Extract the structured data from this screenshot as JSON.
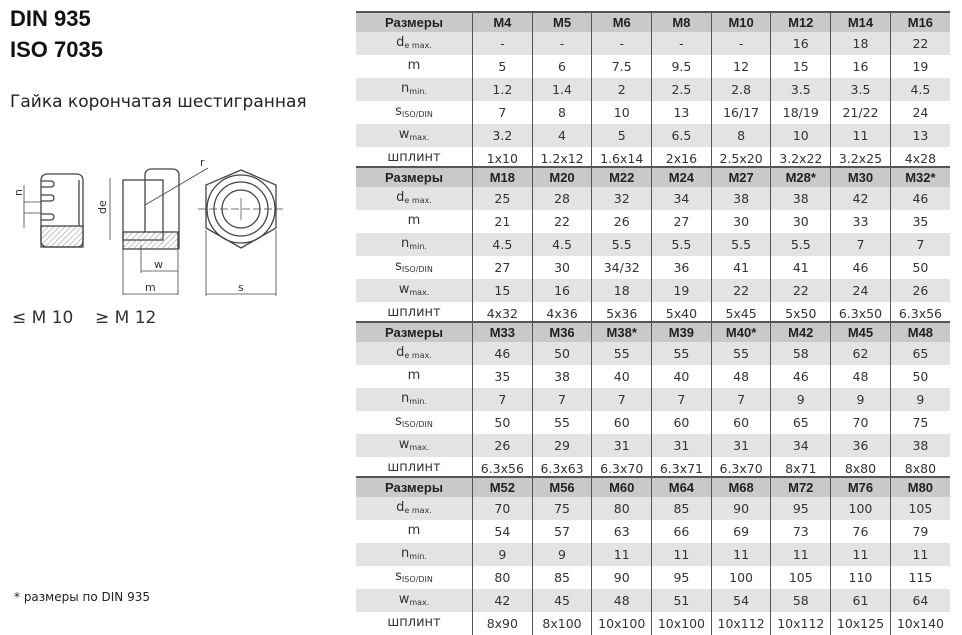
{
  "header": {
    "title1": "DIN 935",
    "title2": "ISO 7035",
    "subtitle": "Гайка корончатая шестигранная"
  },
  "drawing": {
    "labels": {
      "n": "n",
      "de": "de",
      "r": "r",
      "w": "w",
      "m": "m",
      "s": "s"
    },
    "note_left": "≤ M 10",
    "note_right": "≥ M 12"
  },
  "footnote": "* размеры по DIN 935",
  "row_labels": [
    {
      "main": "d",
      "sub": "e max."
    },
    {
      "main": "m",
      "sub": ""
    },
    {
      "main": "n",
      "sub": "min."
    },
    {
      "main": "s",
      "sub": "ISO/DIN"
    },
    {
      "main": "w",
      "sub": "max."
    },
    {
      "main": "шплинт",
      "sub": ""
    }
  ],
  "tables": [
    {
      "header": "Размеры",
      "sizes": [
        "M4",
        "M5",
        "M6",
        "M8",
        "M10",
        "M12",
        "M14",
        "M16"
      ],
      "rows": [
        [
          "-",
          "-",
          "-",
          "-",
          "-",
          "16",
          "18",
          "22"
        ],
        [
          "5",
          "6",
          "7.5",
          "9.5",
          "12",
          "15",
          "16",
          "19"
        ],
        [
          "1.2",
          "1.4",
          "2",
          "2.5",
          "2.8",
          "3.5",
          "3.5",
          "4.5"
        ],
        [
          "7",
          "8",
          "10",
          "13",
          "16/17",
          "18/19",
          "21/22",
          "24"
        ],
        [
          "3.2",
          "4",
          "5",
          "6.5",
          "8",
          "10",
          "11",
          "13"
        ],
        [
          "1x10",
          "1.2x12",
          "1.6x14",
          "2x16",
          "2.5x20",
          "3.2x22",
          "3.2x25",
          "4x28"
        ]
      ]
    },
    {
      "header": "Размеры",
      "sizes": [
        "M18",
        "M20",
        "M22",
        "M24",
        "M27",
        "M28*",
        "M30",
        "M32*"
      ],
      "rows": [
        [
          "25",
          "28",
          "32",
          "34",
          "38",
          "38",
          "42",
          "46"
        ],
        [
          "21",
          "22",
          "26",
          "27",
          "30",
          "30",
          "33",
          "35"
        ],
        [
          "4.5",
          "4.5",
          "5.5",
          "5.5",
          "5.5",
          "5.5",
          "7",
          "7"
        ],
        [
          "27",
          "30",
          "34/32",
          "36",
          "41",
          "41",
          "46",
          "50"
        ],
        [
          "15",
          "16",
          "18",
          "19",
          "22",
          "22",
          "24",
          "26"
        ],
        [
          "4x32",
          "4x36",
          "5x36",
          "5x40",
          "5x45",
          "5x50",
          "6.3x50",
          "6.3x56"
        ]
      ]
    },
    {
      "header": "Размеры",
      "sizes": [
        "M33",
        "M36",
        "M38*",
        "M39",
        "M40*",
        "M42",
        "M45",
        "M48"
      ],
      "rows": [
        [
          "46",
          "50",
          "55",
          "55",
          "55",
          "58",
          "62",
          "65"
        ],
        [
          "35",
          "38",
          "40",
          "40",
          "48",
          "46",
          "48",
          "50"
        ],
        [
          "7",
          "7",
          "7",
          "7",
          "7",
          "9",
          "9",
          "9"
        ],
        [
          "50",
          "55",
          "60",
          "60",
          "60",
          "65",
          "70",
          "75"
        ],
        [
          "26",
          "29",
          "31",
          "31",
          "31",
          "34",
          "36",
          "38"
        ],
        [
          "6.3x56",
          "6.3x63",
          "6.3x70",
          "6.3x71",
          "6.3x70",
          "8x71",
          "8x80",
          "8x80"
        ]
      ]
    },
    {
      "header": "Размеры",
      "sizes": [
        "M52",
        "M56",
        "M60",
        "M64",
        "M68",
        "M72",
        "M76",
        "M80"
      ],
      "rows": [
        [
          "70",
          "75",
          "80",
          "85",
          "90",
          "95",
          "100",
          "105"
        ],
        [
          "54",
          "57",
          "63",
          "66",
          "69",
          "73",
          "76",
          "79"
        ],
        [
          "9",
          "9",
          "11",
          "11",
          "11",
          "11",
          "11",
          "11"
        ],
        [
          "80",
          "85",
          "90",
          "95",
          "100",
          "105",
          "110",
          "115"
        ],
        [
          "42",
          "45",
          "48",
          "51",
          "54",
          "58",
          "61",
          "64"
        ],
        [
          "8x90",
          "8x100",
          "10x100",
          "10x100",
          "10x112",
          "10x112",
          "10x125",
          "10x140"
        ]
      ]
    }
  ]
}
